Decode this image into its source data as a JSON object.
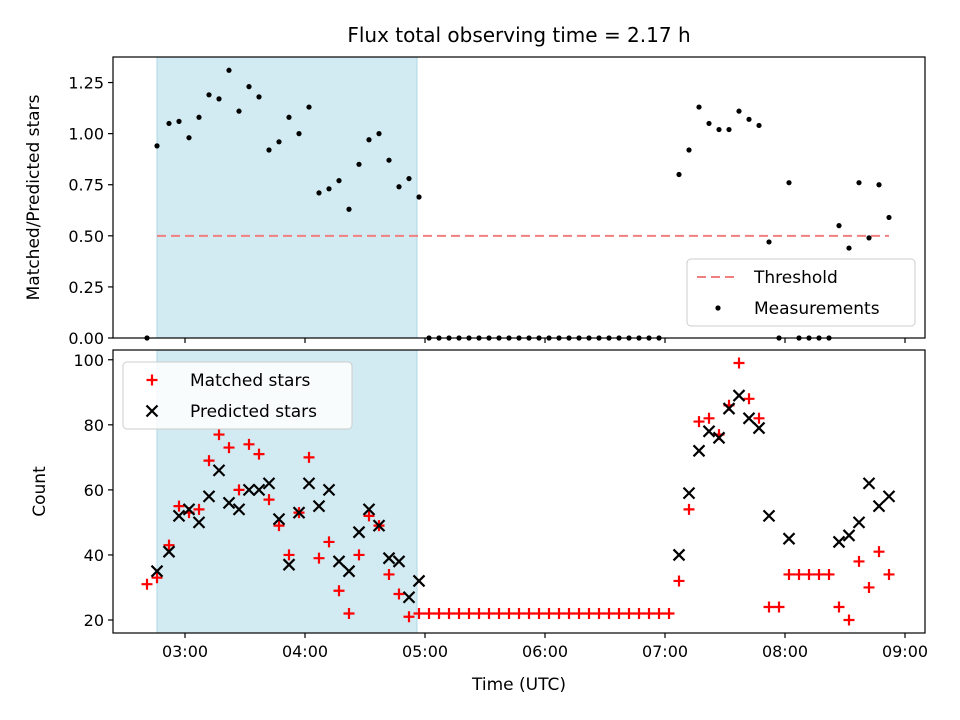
{
  "figure": {
    "title": "Flux total observing time = 2.17 h",
    "xlabel": "Time (UTC)"
  },
  "colors": {
    "highlight": "#add8e6",
    "threshold": "#f08080",
    "measurement": "#000000",
    "matched": "#ff0000",
    "predicted": "#000000"
  },
  "chart_data": [
    {
      "type": "scatter",
      "title": "Flux total observing time = 2.17 h",
      "ylabel": "Matched/Predicted stars",
      "ylim": [
        0,
        1.375
      ],
      "yticks": [
        0.0,
        0.25,
        0.5,
        0.75,
        1.0,
        1.25
      ],
      "ytick_labels": [
        "0.00",
        "0.25",
        "0.50",
        "0.75",
        "1.00",
        "1.25"
      ],
      "xlim": [
        "02:24",
        "09:10"
      ],
      "highlight_span": [
        "02:46",
        "04:56"
      ],
      "threshold": {
        "label": "Threshold",
        "value": 0.5,
        "x_range": [
          "02:46",
          "08:52"
        ]
      },
      "legend": {
        "position": "lower right",
        "entries": [
          "Threshold",
          "Measurements"
        ]
      },
      "series": [
        {
          "name": "Measurements",
          "marker": "dot",
          "points": [
            [
              "02:41",
              0.0
            ],
            [
              "02:46",
              0.94
            ],
            [
              "02:52",
              1.05
            ],
            [
              "02:57",
              1.06
            ],
            [
              "03:02",
              0.98
            ],
            [
              "03:07",
              1.08
            ],
            [
              "03:12",
              1.19
            ],
            [
              "03:17",
              1.17
            ],
            [
              "03:22",
              1.31
            ],
            [
              "03:27",
              1.11
            ],
            [
              "03:32",
              1.23
            ],
            [
              "03:37",
              1.18
            ],
            [
              "03:42",
              0.92
            ],
            [
              "03:47",
              0.96
            ],
            [
              "03:52",
              1.08
            ],
            [
              "03:57",
              1.0
            ],
            [
              "04:02",
              1.13
            ],
            [
              "04:07",
              0.71
            ],
            [
              "04:12",
              0.73
            ],
            [
              "04:17",
              0.77
            ],
            [
              "04:22",
              0.63
            ],
            [
              "04:27",
              0.85
            ],
            [
              "04:32",
              0.97
            ],
            [
              "04:37",
              1.0
            ],
            [
              "04:42",
              0.87
            ],
            [
              "04:47",
              0.74
            ],
            [
              "04:52",
              0.78
            ],
            [
              "04:57",
              0.69
            ],
            [
              "05:02",
              0.0
            ],
            [
              "05:07",
              0.0
            ],
            [
              "05:12",
              0.0
            ],
            [
              "05:17",
              0.0
            ],
            [
              "05:22",
              0.0
            ],
            [
              "05:27",
              0.0
            ],
            [
              "05:32",
              0.0
            ],
            [
              "05:37",
              0.0
            ],
            [
              "05:42",
              0.0
            ],
            [
              "05:47",
              0.0
            ],
            [
              "05:52",
              0.0
            ],
            [
              "05:57",
              0.0
            ],
            [
              "06:02",
              0.0
            ],
            [
              "06:07",
              0.0
            ],
            [
              "06:12",
              0.0
            ],
            [
              "06:17",
              0.0
            ],
            [
              "06:22",
              0.0
            ],
            [
              "06:27",
              0.0
            ],
            [
              "06:32",
              0.0
            ],
            [
              "06:37",
              0.0
            ],
            [
              "06:42",
              0.0
            ],
            [
              "06:47",
              0.0
            ],
            [
              "06:52",
              0.0
            ],
            [
              "06:57",
              0.0
            ],
            [
              "07:07",
              0.8
            ],
            [
              "07:12",
              0.92
            ],
            [
              "07:17",
              1.13
            ],
            [
              "07:22",
              1.05
            ],
            [
              "07:27",
              1.02
            ],
            [
              "07:32",
              1.02
            ],
            [
              "07:37",
              1.11
            ],
            [
              "07:42",
              1.07
            ],
            [
              "07:47",
              1.04
            ],
            [
              "07:52",
              0.47
            ],
            [
              "07:57",
              0.0
            ],
            [
              "08:02",
              0.76
            ],
            [
              "08:07",
              0.0
            ],
            [
              "08:12",
              0.0
            ],
            [
              "08:17",
              0.0
            ],
            [
              "08:22",
              0.0
            ],
            [
              "08:27",
              0.55
            ],
            [
              "08:32",
              0.44
            ],
            [
              "08:37",
              0.76
            ],
            [
              "08:42",
              0.49
            ],
            [
              "08:47",
              0.75
            ],
            [
              "08:52",
              0.59
            ]
          ]
        }
      ]
    },
    {
      "type": "scatter",
      "xlabel": "Time (UTC)",
      "ylabel": "Count",
      "ylim": [
        16,
        103
      ],
      "yticks": [
        20,
        40,
        60,
        80,
        100
      ],
      "ytick_labels": [
        "20",
        "40",
        "60",
        "80",
        "100"
      ],
      "xlim": [
        "02:24",
        "09:10"
      ],
      "xticks": [
        "03:00",
        "04:00",
        "05:00",
        "06:00",
        "07:00",
        "08:00",
        "09:00"
      ],
      "xtick_labels": [
        "03:00",
        "04:00",
        "05:00",
        "06:00",
        "07:00",
        "08:00",
        "09:00"
      ],
      "highlight_span": [
        "02:46",
        "04:56"
      ],
      "legend": {
        "position": "upper left",
        "entries": [
          "Matched stars",
          "Predicted stars"
        ]
      },
      "series": [
        {
          "name": "Matched stars",
          "marker": "+",
          "points": [
            [
              "02:41",
              31
            ],
            [
              "02:46",
              33
            ],
            [
              "02:52",
              43
            ],
            [
              "02:57",
              55
            ],
            [
              "03:02",
              53
            ],
            [
              "03:07",
              54
            ],
            [
              "03:12",
              69
            ],
            [
              "03:17",
              77
            ],
            [
              "03:22",
              73
            ],
            [
              "03:27",
              60
            ],
            [
              "03:32",
              74
            ],
            [
              "03:37",
              71
            ],
            [
              "03:42",
              57
            ],
            [
              "03:47",
              49
            ],
            [
              "03:52",
              40
            ],
            [
              "03:57",
              53
            ],
            [
              "04:02",
              70
            ],
            [
              "04:07",
              39
            ],
            [
              "04:12",
              44
            ],
            [
              "04:17",
              29
            ],
            [
              "04:22",
              22
            ],
            [
              "04:27",
              40
            ],
            [
              "04:32",
              52
            ],
            [
              "04:37",
              49
            ],
            [
              "04:42",
              34
            ],
            [
              "04:47",
              28
            ],
            [
              "04:52",
              21
            ],
            [
              "04:57",
              22
            ],
            [
              "05:02",
              22
            ],
            [
              "05:07",
              22
            ],
            [
              "05:12",
              22
            ],
            [
              "05:17",
              22
            ],
            [
              "05:22",
              22
            ],
            [
              "05:27",
              22
            ],
            [
              "05:32",
              22
            ],
            [
              "05:37",
              22
            ],
            [
              "05:42",
              22
            ],
            [
              "05:47",
              22
            ],
            [
              "05:52",
              22
            ],
            [
              "05:57",
              22
            ],
            [
              "06:02",
              22
            ],
            [
              "06:07",
              22
            ],
            [
              "06:12",
              22
            ],
            [
              "06:17",
              22
            ],
            [
              "06:22",
              22
            ],
            [
              "06:27",
              22
            ],
            [
              "06:32",
              22
            ],
            [
              "06:37",
              22
            ],
            [
              "06:42",
              22
            ],
            [
              "06:47",
              22
            ],
            [
              "06:52",
              22
            ],
            [
              "06:57",
              22
            ],
            [
              "07:02",
              22
            ],
            [
              "07:07",
              32
            ],
            [
              "07:12",
              54
            ],
            [
              "07:17",
              81
            ],
            [
              "07:22",
              82
            ],
            [
              "07:27",
              77
            ],
            [
              "07:32",
              86
            ],
            [
              "07:37",
              99
            ],
            [
              "07:42",
              88
            ],
            [
              "07:47",
              82
            ],
            [
              "07:52",
              24
            ],
            [
              "07:57",
              24
            ],
            [
              "08:02",
              34
            ],
            [
              "08:07",
              34
            ],
            [
              "08:12",
              34
            ],
            [
              "08:17",
              34
            ],
            [
              "08:22",
              34
            ],
            [
              "08:27",
              24
            ],
            [
              "08:32",
              20
            ],
            [
              "08:37",
              38
            ],
            [
              "08:42",
              30
            ],
            [
              "08:47",
              41
            ],
            [
              "08:52",
              34
            ]
          ]
        },
        {
          "name": "Predicted stars",
          "marker": "x",
          "points": [
            [
              "02:46",
              35
            ],
            [
              "02:52",
              41
            ],
            [
              "02:57",
              52
            ],
            [
              "03:02",
              54
            ],
            [
              "03:07",
              50
            ],
            [
              "03:12",
              58
            ],
            [
              "03:17",
              66
            ],
            [
              "03:22",
              56
            ],
            [
              "03:27",
              54
            ],
            [
              "03:32",
              60
            ],
            [
              "03:37",
              60
            ],
            [
              "03:42",
              62
            ],
            [
              "03:47",
              51
            ],
            [
              "03:52",
              37
            ],
            [
              "03:57",
              53
            ],
            [
              "04:02",
              62
            ],
            [
              "04:07",
              55
            ],
            [
              "04:12",
              60
            ],
            [
              "04:17",
              38
            ],
            [
              "04:22",
              35
            ],
            [
              "04:27",
              47
            ],
            [
              "04:32",
              54
            ],
            [
              "04:37",
              49
            ],
            [
              "04:42",
              39
            ],
            [
              "04:47",
              38
            ],
            [
              "04:52",
              27
            ],
            [
              "04:57",
              32
            ],
            [
              "07:07",
              40
            ],
            [
              "07:12",
              59
            ],
            [
              "07:17",
              72
            ],
            [
              "07:22",
              78
            ],
            [
              "07:27",
              76
            ],
            [
              "07:32",
              85
            ],
            [
              "07:37",
              89
            ],
            [
              "07:42",
              82
            ],
            [
              "07:47",
              79
            ],
            [
              "07:52",
              52
            ],
            [
              "08:02",
              45
            ],
            [
              "08:27",
              44
            ],
            [
              "08:32",
              46
            ],
            [
              "08:37",
              50
            ],
            [
              "08:42",
              62
            ],
            [
              "08:47",
              55
            ],
            [
              "08:52",
              58
            ]
          ]
        }
      ]
    }
  ]
}
